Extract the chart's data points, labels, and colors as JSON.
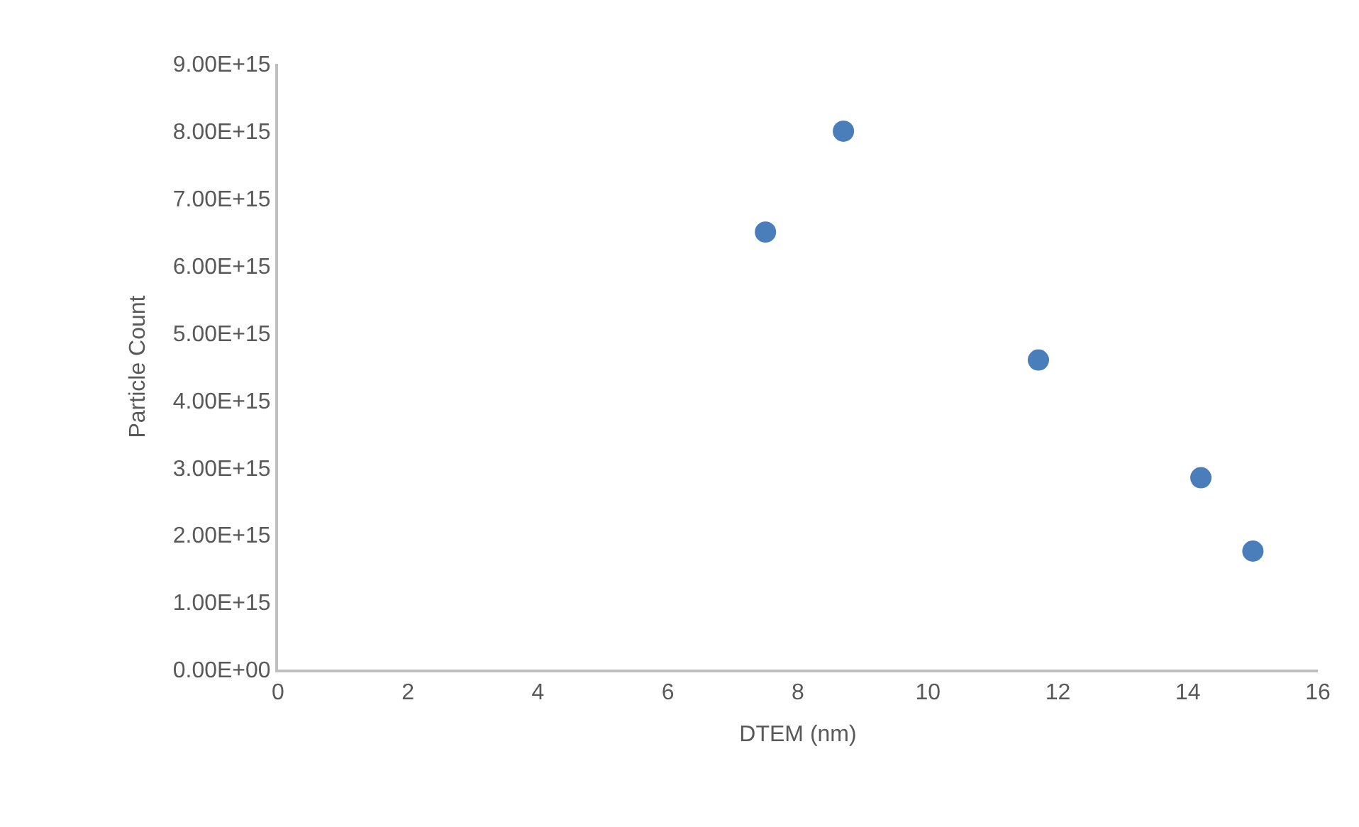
{
  "chart_data": {
    "type": "scatter",
    "xlabel": "DTEM (nm)",
    "ylabel": "Particle Count",
    "x": [
      7.5,
      8.7,
      11.7,
      14.2,
      15.0
    ],
    "series": [
      {
        "color": "#4a7ebb",
        "values": [
          6500000000000000.0,
          8000000000000000.0,
          4600000000000000.0,
          2850000000000000.0,
          1760000000000000.0
        ]
      }
    ],
    "xlim": [
      0,
      16
    ],
    "xticks": [
      0,
      2,
      4,
      6,
      8,
      10,
      12,
      14,
      16
    ],
    "ylim": [
      0,
      9000000000000000.0
    ],
    "yticks": [
      {
        "value": 0,
        "label": "0.00E+00"
      },
      {
        "value": 1000000000000000.0,
        "label": "1.00E+15"
      },
      {
        "value": 2000000000000000.0,
        "label": "2.00E+15"
      },
      {
        "value": 3000000000000000.0,
        "label": "3.00E+15"
      },
      {
        "value": 4000000000000000.0,
        "label": "4.00E+15"
      },
      {
        "value": 5000000000000000.0,
        "label": "5.00E+15"
      },
      {
        "value": 6000000000000000.0,
        "label": "6.00E+15"
      },
      {
        "value": 7000000000000000.0,
        "label": "7.00E+15"
      },
      {
        "value": 8000000000000000.0,
        "label": "8.00E+15"
      },
      {
        "value": 9000000000000000.0,
        "label": "9.00E+15"
      }
    ],
    "marker": "circle"
  }
}
